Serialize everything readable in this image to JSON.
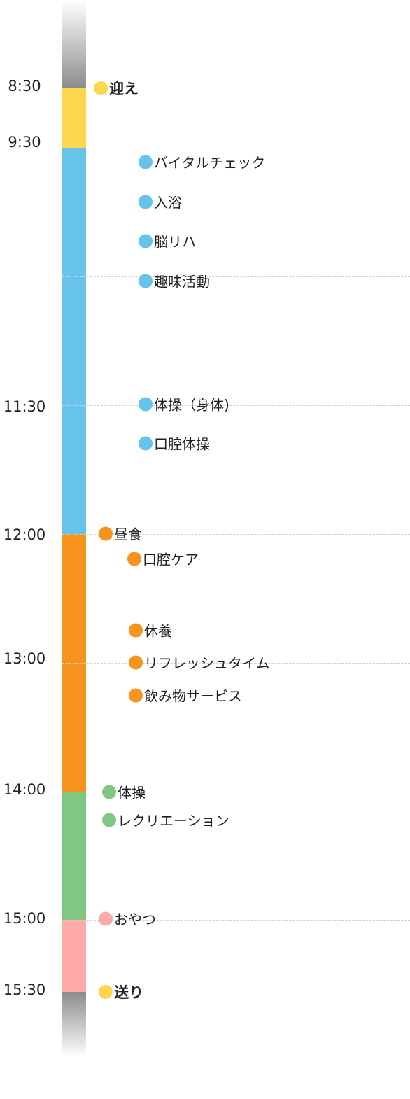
{
  "colors": {
    "yellow": "#ffd64f",
    "blue": "#66c4ea",
    "orange": "#f7941e",
    "green": "#80c784",
    "pink": "#ffaaaa",
    "gray": "#8c8c8c",
    "gridline": "#cfcfcf"
  },
  "times": [
    "8:30",
    "9:30",
    "11:30",
    "12:00",
    "13:00",
    "14:00",
    "15:00",
    "15:30"
  ],
  "activities": [
    {
      "label": "迎え",
      "color": "yellow",
      "bold": true
    },
    {
      "label": "バイタルチェック",
      "color": "blue"
    },
    {
      "label": "入浴",
      "color": "blue"
    },
    {
      "label": "脳リハ",
      "color": "blue"
    },
    {
      "label": "趣味活動",
      "color": "blue"
    },
    {
      "label": "体操（身体)",
      "color": "blue"
    },
    {
      "label": "口腔体操",
      "color": "blue"
    },
    {
      "label": "昼食",
      "color": "orange"
    },
    {
      "label": "口腔ケア",
      "color": "orange"
    },
    {
      "label": "休養",
      "color": "orange"
    },
    {
      "label": "リフレッシュタイム",
      "color": "orange"
    },
    {
      "label": "飲み物サービス",
      "color": "orange"
    },
    {
      "label": "体操",
      "color": "green"
    },
    {
      "label": "レクリエーション",
      "color": "green"
    },
    {
      "label": "おやつ",
      "color": "pink"
    },
    {
      "label": "送り",
      "color": "yellow",
      "bold": true
    }
  ]
}
